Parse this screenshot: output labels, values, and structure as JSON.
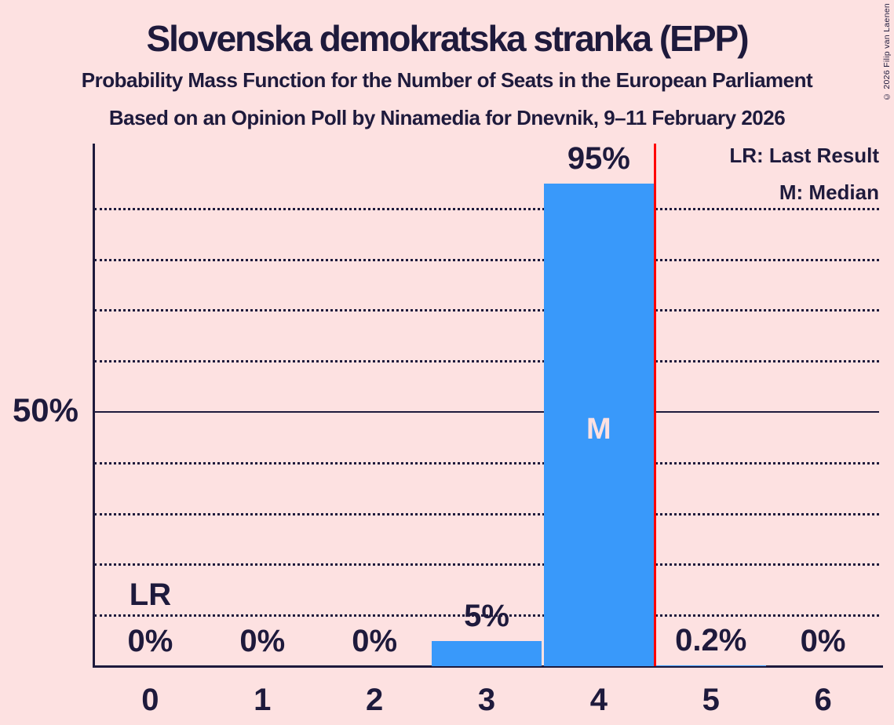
{
  "copyright": "© 2026 Filip van Laenen",
  "chart_data": {
    "type": "bar",
    "title": "Slovenska demokratska stranka (EPP)",
    "subtitle": "Probability Mass Function for the Number of Seats in the European Parliament",
    "source": "Based on an Opinion Poll by Ninamedia for Dnevnik, 9–11 February 2026",
    "categories": [
      "0",
      "1",
      "2",
      "3",
      "4",
      "5",
      "6"
    ],
    "values": [
      0,
      0,
      0,
      5,
      95,
      0.2,
      0
    ],
    "value_labels": [
      "0%",
      "0%",
      "0%",
      "5%",
      "95%",
      "0.2%",
      "0%"
    ],
    "xlabel": "",
    "ylabel": "",
    "ylim": [
      0,
      102.8
    ],
    "y_tick": {
      "pct": 50,
      "label": "50%"
    },
    "gridlines_pct": [
      10,
      20,
      30,
      40,
      50,
      60,
      70,
      80,
      90
    ],
    "solid_gridline_pct": 50,
    "grid": "horizontal-dotted",
    "legend": {
      "position": "top-right",
      "lr": "LR: Last Result",
      "m": "M: Median"
    },
    "annotations": {
      "lr_label": "LR",
      "lr_label_column": 0,
      "median_label": "M",
      "median_column": 4
    },
    "last_result_line": {
      "between_categories": [
        4,
        5
      ]
    },
    "colors": {
      "background": "#fde1e1",
      "bar": "#3999fa",
      "text": "#1e1a3c",
      "median_letter": "#fde1e1",
      "last_result_line": "#ff0000"
    }
  }
}
